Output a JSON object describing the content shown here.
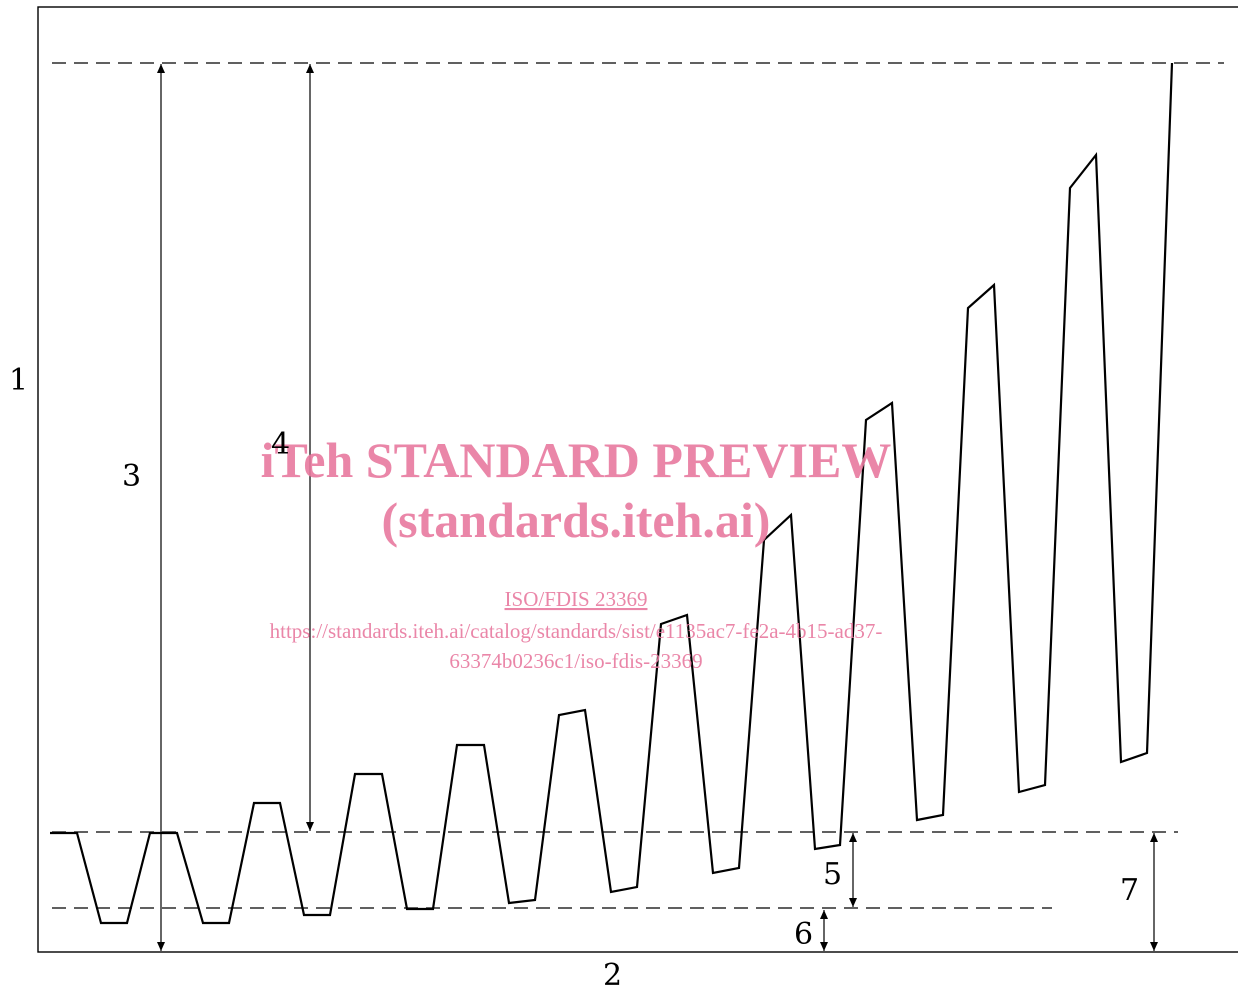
{
  "labels": {
    "l1": "1",
    "l2": "2",
    "l3": "3",
    "l4": "4",
    "l5": "5",
    "l6": "6",
    "l7": "7"
  },
  "watermark": {
    "title": "iTeh STANDARD PREVIEW",
    "subtitle": "(standards.iteh.ai)",
    "doc": "ISO/FDIS 23369",
    "url_line1": "https://standards.iteh.ai/catalog/standards/sist/e1135ac7-fe2a-4b15-ad37-",
    "url_line2": "63374b0236c1/iso-fdis-23369"
  },
  "colors": {
    "line": "#000000",
    "watermark": "#e8799f"
  }
}
